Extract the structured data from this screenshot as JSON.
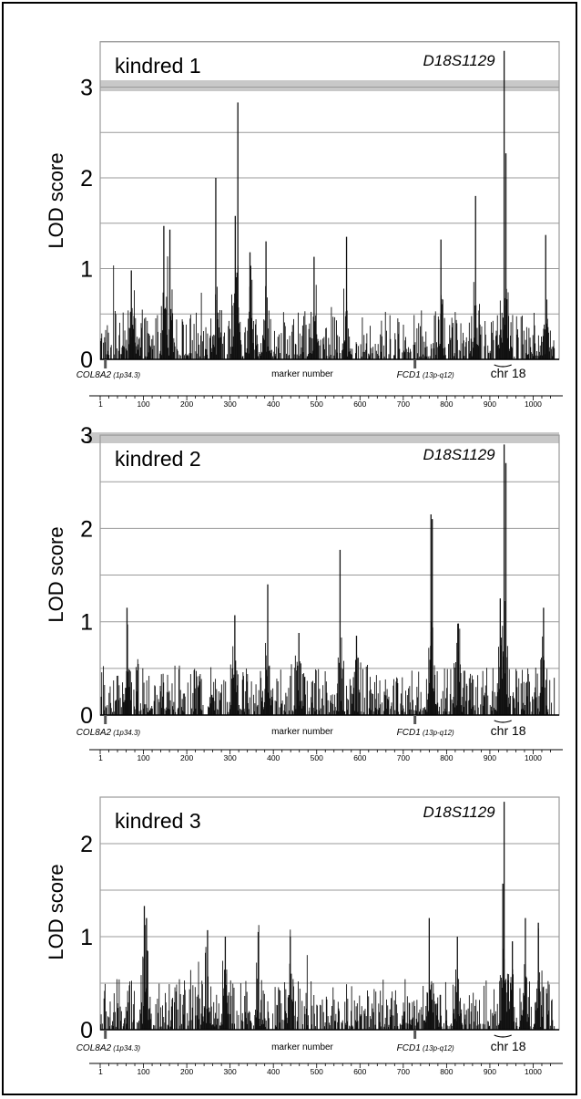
{
  "colors": {
    "bars": "#111111",
    "grid": "#9a9a9a",
    "threshold_band": "#c8c8c8",
    "axis": "#000000",
    "frame": "#000000"
  },
  "chart_data": [
    {
      "type": "bar",
      "title": "kindred 1",
      "ylabel": "LOD score",
      "xlabel": "marker number",
      "ylim": [
        0,
        3.5
      ],
      "xlim": [
        0,
        1060
      ],
      "yticks": [
        0,
        1,
        2,
        3
      ],
      "gridlines": [
        0.5,
        1,
        1.5,
        2,
        2.5,
        3,
        3.5
      ],
      "threshold": 3,
      "xticks": [
        1,
        100,
        200,
        300,
        400,
        500,
        600,
        700,
        800,
        900,
        1000
      ],
      "annotations": {
        "peak_marker": "D18S1129",
        "peak_x": 933,
        "left_gene": "COL8A2",
        "left_gene_loc": "(1p34.3)",
        "left_gene_x": 12,
        "mid_gene": "FCD1",
        "mid_gene_loc": "(13p-q12)",
        "mid_gene_x": 727,
        "chr_label": "chr 18",
        "chr_range": [
          910,
          950
        ]
      },
      "peaks": [
        {
          "x": 933,
          "y": 3.4
        },
        {
          "x": 937,
          "y": 2.27
        },
        {
          "x": 318,
          "y": 2.83
        },
        {
          "x": 267,
          "y": 2.0
        },
        {
          "x": 312,
          "y": 1.58
        },
        {
          "x": 867,
          "y": 1.8
        },
        {
          "x": 147,
          "y": 1.47
        },
        {
          "x": 161,
          "y": 1.43
        },
        {
          "x": 383,
          "y": 1.3
        },
        {
          "x": 569,
          "y": 1.35
        },
        {
          "x": 787,
          "y": 1.32
        },
        {
          "x": 1029,
          "y": 1.37
        },
        {
          "x": 494,
          "y": 1.13
        },
        {
          "x": 72,
          "y": 0.98
        },
        {
          "x": 346,
          "y": 1.18
        }
      ]
    },
    {
      "type": "bar",
      "title": "kindred 2",
      "ylabel": "LOD score",
      "xlabel": "marker number",
      "ylim": [
        0,
        3.0
      ],
      "xlim": [
        0,
        1060
      ],
      "yticks": [
        0,
        1,
        2,
        3
      ],
      "gridlines": [
        0.5,
        1,
        1.5,
        2,
        2.5
      ],
      "threshold": 3,
      "xticks": [
        1,
        100,
        200,
        300,
        400,
        500,
        600,
        700,
        800,
        900,
        1000
      ],
      "annotations": {
        "peak_marker": "D18S1129",
        "peak_x": 933,
        "left_gene": "COL8A2",
        "left_gene_loc": "(1p34.3)",
        "left_gene_x": 12,
        "mid_gene": "FCD1",
        "mid_gene_loc": "(13p-q12)",
        "mid_gene_x": 727,
        "chr_label": "chr 18",
        "chr_range": [
          910,
          950
        ]
      },
      "peaks": [
        {
          "x": 933,
          "y": 2.9
        },
        {
          "x": 937,
          "y": 2.7
        },
        {
          "x": 764,
          "y": 2.15
        },
        {
          "x": 767,
          "y": 2.1
        },
        {
          "x": 554,
          "y": 1.77
        },
        {
          "x": 387,
          "y": 1.4
        },
        {
          "x": 924,
          "y": 1.25
        },
        {
          "x": 62,
          "y": 1.15
        },
        {
          "x": 1024,
          "y": 1.15
        },
        {
          "x": 311,
          "y": 1.07
        },
        {
          "x": 826,
          "y": 0.98
        },
        {
          "x": 459,
          "y": 0.88
        },
        {
          "x": 592,
          "y": 0.85
        }
      ]
    },
    {
      "type": "bar",
      "title": "kindred 3",
      "ylabel": "LOD score",
      "xlabel": "marker number",
      "ylim": [
        0,
        2.5
      ],
      "xlim": [
        0,
        1060
      ],
      "yticks": [
        0,
        1,
        2
      ],
      "gridlines": [
        0.5,
        1,
        1.5,
        2,
        2.5
      ],
      "threshold": null,
      "xticks": [
        1,
        100,
        200,
        300,
        400,
        500,
        600,
        700,
        800,
        900,
        1000
      ],
      "annotations": {
        "peak_marker": "D18S1129",
        "peak_x": 933,
        "left_gene": "COL8A2",
        "left_gene_loc": "(1p34.3)",
        "left_gene_x": 12,
        "mid_gene": "FCD1",
        "mid_gene_loc": "(13p-q12)",
        "mid_gene_x": 727,
        "chr_label": "chr 18",
        "chr_range": [
          910,
          950
        ]
      },
      "peaks": [
        {
          "x": 933,
          "y": 2.45
        },
        {
          "x": 930,
          "y": 1.57
        },
        {
          "x": 102,
          "y": 1.33
        },
        {
          "x": 107,
          "y": 1.2
        },
        {
          "x": 760,
          "y": 1.2
        },
        {
          "x": 982,
          "y": 1.2
        },
        {
          "x": 1012,
          "y": 1.15
        },
        {
          "x": 248,
          "y": 1.07
        },
        {
          "x": 365,
          "y": 1.05
        },
        {
          "x": 952,
          "y": 0.95
        },
        {
          "x": 825,
          "y": 1.0
        },
        {
          "x": 289,
          "y": 1.0
        },
        {
          "x": 439,
          "y": 1.0
        }
      ]
    }
  ]
}
